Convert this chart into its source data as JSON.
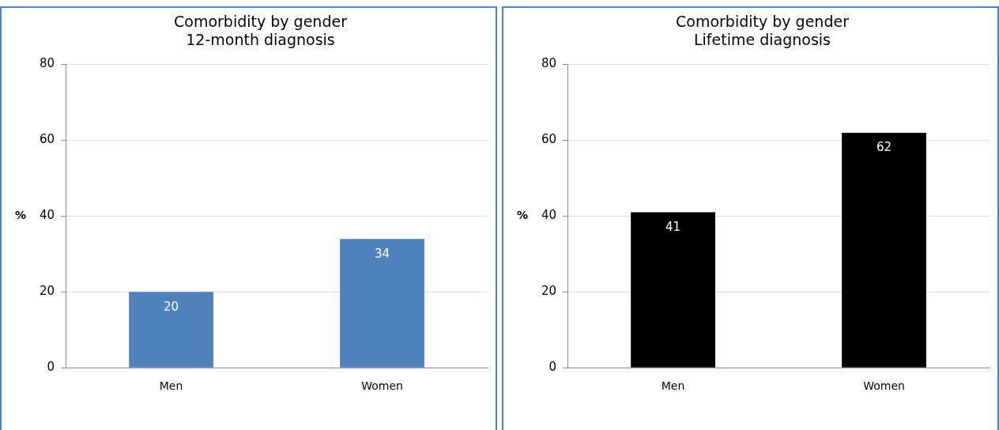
{
  "chart_data": [
    {
      "type": "bar",
      "title": "Comorbidity by gender",
      "subtitle": "12-month diagnosis",
      "ylabel": "%",
      "categories": [
        "Men",
        "Women"
      ],
      "values": [
        20,
        34
      ],
      "color": "#4f81bd",
      "ylim": [
        0,
        80
      ],
      "yticks": [
        0,
        20,
        40,
        60,
        80
      ],
      "grid": "y",
      "legend": false,
      "data_labels": true
    },
    {
      "type": "bar",
      "title": "Comorbidity by gender",
      "subtitle": "Lifetime diagnosis",
      "ylabel": "%",
      "categories": [
        "Men",
        "Women"
      ],
      "values": [
        41,
        62
      ],
      "color": "#000000",
      "ylim": [
        0,
        80
      ],
      "yticks": [
        0,
        20,
        40,
        60,
        80
      ],
      "grid": "y",
      "legend": false,
      "data_labels": true
    }
  ]
}
